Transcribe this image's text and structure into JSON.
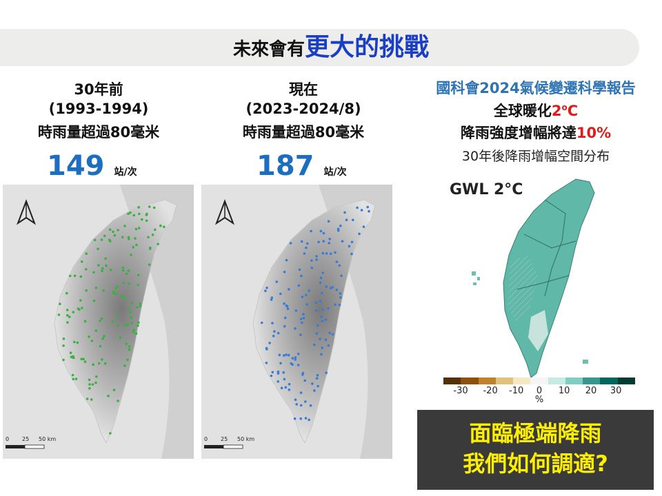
{
  "title": {
    "prefix": "未來會有",
    "highlight": "更大的挑戰"
  },
  "past": {
    "heading": "30年前",
    "period": "(1993-1994)",
    "desc": "時雨量超過80毫米",
    "count": "149",
    "unit": "站/次",
    "scale_labels": [
      "0",
      "25",
      "50 km"
    ]
  },
  "present": {
    "heading": "現在",
    "period": "(2023-2024/8)",
    "desc": "時雨量超過80毫米",
    "count": "187",
    "unit": "站/次",
    "scale_labels": [
      "0",
      "25",
      "50 km"
    ]
  },
  "report": {
    "title": "國科會2024氣候變遷科學報告",
    "line1_prefix": "全球暖化",
    "line1_value": "2",
    "line1_degree": "o",
    "line1_suffix": "C",
    "line2_prefix": "降雨強度增幅將達",
    "line2_value": "10%",
    "caption": "30年後降雨增幅空間分布",
    "map_label": "GWL 2°C",
    "colorbar_ticks": [
      "-30",
      "-20",
      "-10",
      "0",
      "10",
      "20",
      "30"
    ],
    "colorbar_unit": "%"
  },
  "callout": {
    "line1": "面臨極端降雨",
    "line2": "我們如何調適?"
  },
  "colors": {
    "title_blue": "#1a3fc4",
    "count_blue": "#1c6ec0",
    "report_blue": "#2e74b5",
    "accent_red": "#e01b1b",
    "callout_yellow": "#ffef00",
    "past_dots": "#3cb043",
    "present_dots": "#3a7bd5",
    "teal": "#3fa898"
  }
}
